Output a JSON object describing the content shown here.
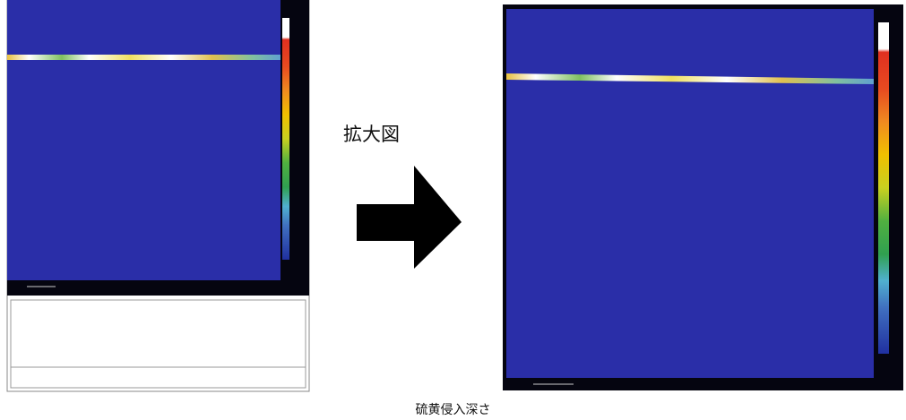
{
  "figure": {
    "zoom_label": "拡大図",
    "caption": "硫黄侵入深さ"
  }
}
